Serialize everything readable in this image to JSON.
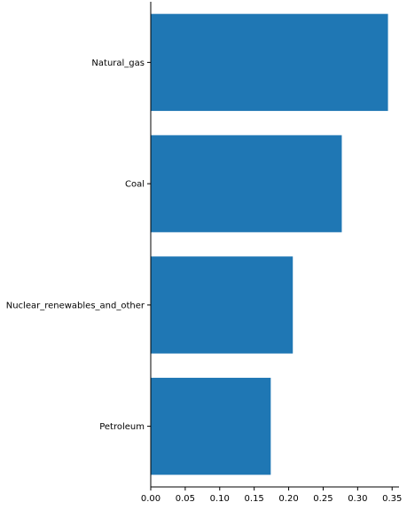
{
  "chart_data": {
    "type": "bar",
    "orientation": "horizontal",
    "categories": [
      "Natural_gas",
      "Coal",
      "Nuclear_renewables_and_other",
      "Petroleum"
    ],
    "values": [
      0.344,
      0.277,
      0.206,
      0.174
    ],
    "xlim": [
      0,
      0.36
    ],
    "xticks": [
      "0.00",
      "0.05",
      "0.10",
      "0.15",
      "0.20",
      "0.25",
      "0.30",
      "0.35"
    ],
    "title": "",
    "xlabel": "",
    "ylabel": "",
    "bar_color": "#1f77b4",
    "grid": false,
    "legend": "none"
  }
}
